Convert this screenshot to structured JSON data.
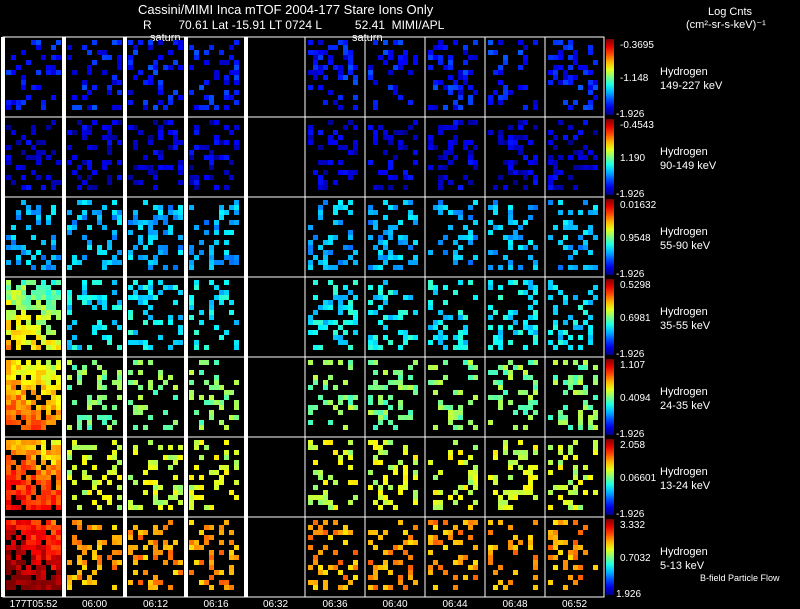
{
  "header": {
    "title": "Cassini/MIMI Inca mTOF  2004-177   Stare   Ions Only",
    "info": "R        70.61 Lat -15.91 LT 0724 L          52.41  MIMI/APL",
    "markers": [
      "saturn",
      "saturn"
    ],
    "units_line1": "Log Cnts",
    "units_line2": "(cm²-sr-s-keV)⁻¹"
  },
  "colors": {
    "background": "#000000",
    "frame": "#ffffff",
    "separator": "#ffffff"
  },
  "time_labels": [
    "177T05:52",
    "06:00",
    "06:12",
    "06:16",
    "06:32",
    "06:36",
    "06:40",
    "06:44",
    "06:48",
    "06:52"
  ],
  "footer_note": "B-field Particle Flow",
  "rows": [
    {
      "species": "Hydrogen",
      "range": "149-227 keV",
      "scale_max": "-0.3695",
      "scale_mid": "-1.148",
      "scale_min": "-1.926",
      "level": 0.14
    },
    {
      "species": "Hydrogen",
      "range": "90-149 keV",
      "scale_max": "-0.4543",
      "scale_mid": "1.190",
      "scale_min": "-1.926",
      "level": 0.08
    },
    {
      "species": "Hydrogen",
      "range": "55-90 keV",
      "scale_max": "0.01632",
      "scale_mid": "0.9548",
      "scale_min": "-1.926",
      "level": 0.3
    },
    {
      "species": "Hydrogen",
      "range": "35-55 keV",
      "scale_max": "0.5298",
      "scale_mid": "0.6981",
      "scale_min": "-1.926",
      "level": 0.36
    },
    {
      "species": "Hydrogen",
      "range": "24-35 keV",
      "scale_max": "1.107",
      "scale_mid": "0.4094",
      "scale_min": "-1.926",
      "level": 0.5
    },
    {
      "species": "Hydrogen",
      "range": "13-24 keV",
      "scale_max": "2.058",
      "scale_mid": "0.06601",
      "scale_min": "-1.926",
      "level": 0.58
    },
    {
      "species": "Hydrogen",
      "range": "5-13 keV",
      "scale_max": "3.332",
      "scale_mid": "0.7032",
      "scale_min": "1.926",
      "level": 0.72
    }
  ]
}
